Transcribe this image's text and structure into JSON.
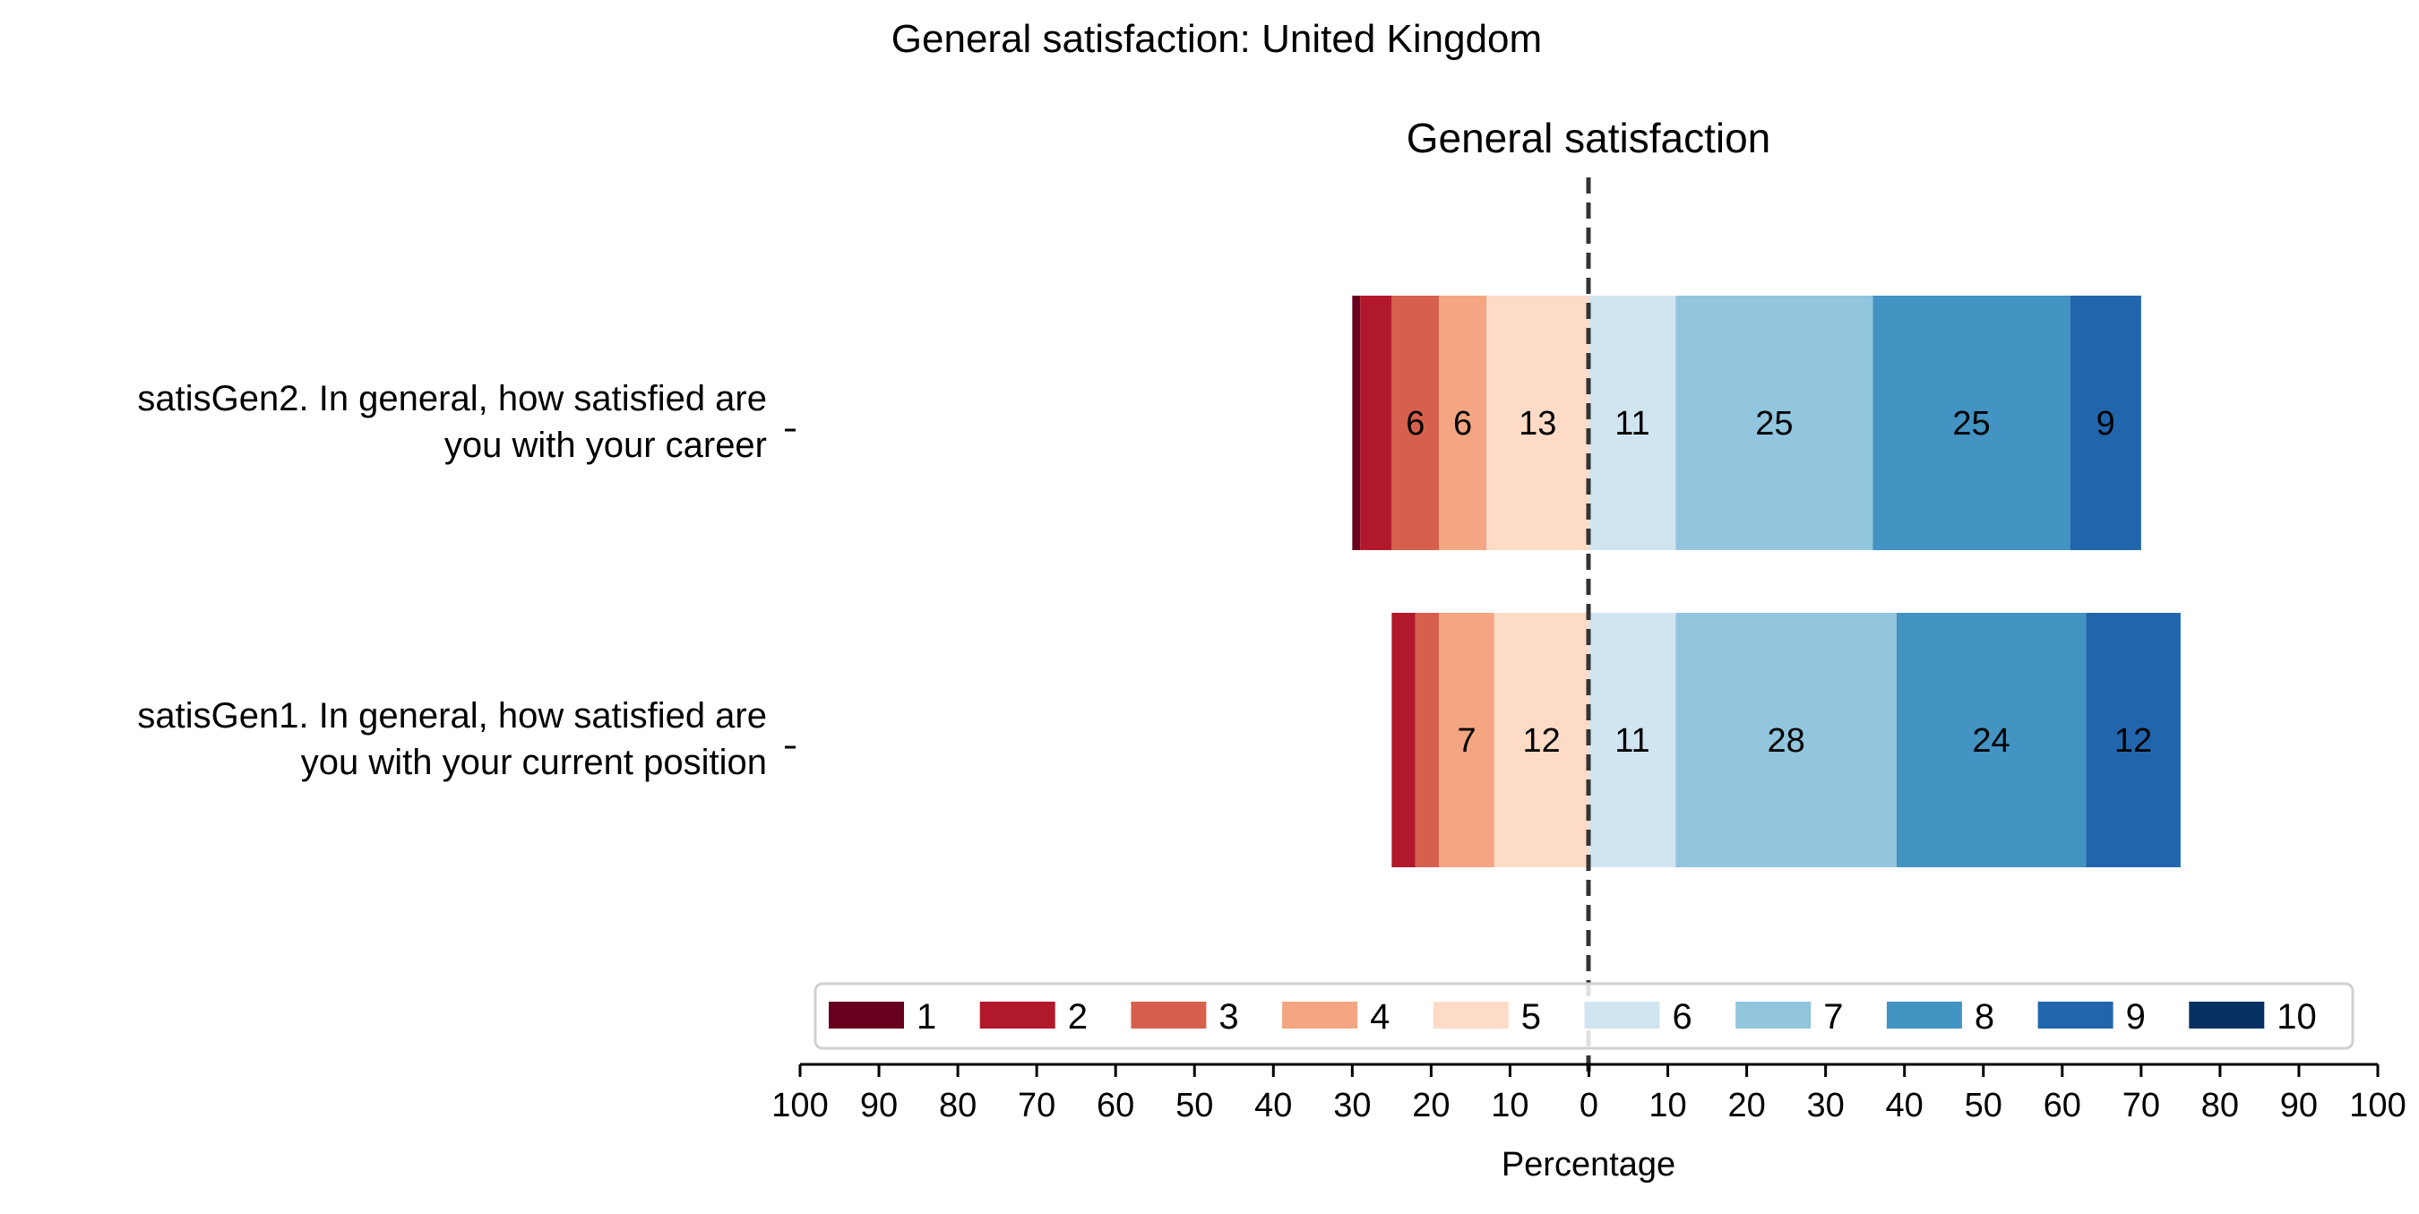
{
  "chart_data": {
    "type": "bar",
    "orientation": "horizontal-diverging",
    "title": "General satisfaction: United Kingdom",
    "subtitle": "General satisfaction",
    "xlabel": "Percentage",
    "xlim": [
      -100,
      100
    ],
    "x_ticks": [
      -100,
      -90,
      -80,
      -70,
      -60,
      -50,
      -40,
      -30,
      -20,
      -10,
      0,
      10,
      20,
      30,
      40,
      50,
      60,
      70,
      80,
      90,
      100
    ],
    "x_tick_labels": [
      "100",
      "90",
      "80",
      "70",
      "60",
      "50",
      "40",
      "30",
      "20",
      "10",
      "0",
      "10",
      "20",
      "30",
      "40",
      "50",
      "60",
      "70",
      "80",
      "90",
      "100"
    ],
    "categories": [
      "satisGen2. In general, how satisfied are you with your career",
      "satisGen1. In general, how satisfied are you with your current position"
    ],
    "category_label_lines": [
      [
        "satisGen2. In general, how satisfied are",
        "you with your career"
      ],
      [
        "satisGen1. In general, how satisfied are",
        "you with your current position"
      ]
    ],
    "series": [
      {
        "name": "1",
        "color": "#67001f",
        "values": [
          1,
          0
        ]
      },
      {
        "name": "2",
        "color": "#b2182b",
        "values": [
          4,
          3
        ]
      },
      {
        "name": "3",
        "color": "#d6604d",
        "values": [
          6,
          3
        ]
      },
      {
        "name": "4",
        "color": "#f4a582",
        "values": [
          6,
          7
        ]
      },
      {
        "name": "5",
        "color": "#fddbc7",
        "values": [
          13,
          12
        ]
      },
      {
        "name": "6",
        "color": "#d1e5f0",
        "values": [
          11,
          11
        ]
      },
      {
        "name": "7",
        "color": "#92c5de",
        "values": [
          25,
          28
        ]
      },
      {
        "name": "8",
        "color": "#4393c3",
        "values": [
          25,
          24
        ]
      },
      {
        "name": "9",
        "color": "#2166ac",
        "values": [
          9,
          12
        ]
      },
      {
        "name": "10",
        "color": "#053061",
        "values": [
          0,
          0
        ]
      }
    ],
    "negative_series": [
      "1",
      "2",
      "3",
      "4",
      "5"
    ],
    "segment_label_min": 5,
    "center_line": "dashed",
    "legend_position": "bottom",
    "grid": false
  }
}
